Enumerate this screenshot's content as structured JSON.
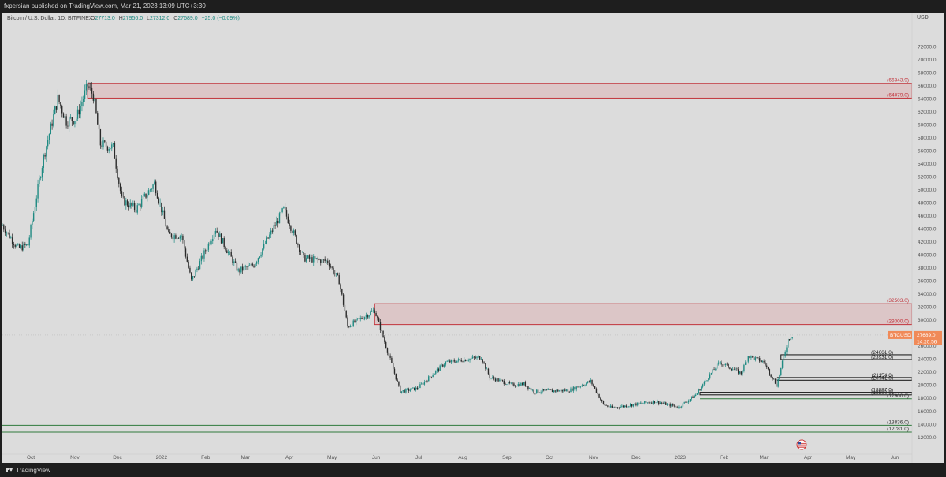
{
  "header": {
    "published_line": "fxpersian published on TradingView.com, Mar 21, 2023 13:09 UTC+3:30"
  },
  "footer": {
    "brand": "TradingView",
    "logo_icon": "tradingview-logo-icon"
  },
  "chart_data": {
    "type": "candlestick",
    "symbol_line": "Bitcoin / U.S. Dollar, 1D, BITFINEX",
    "ohlc": {
      "o_label": "O",
      "o": "27713.0",
      "h_label": "H",
      "h": "27956.0",
      "l_label": "L",
      "l": "27312.0",
      "c_label": "C",
      "c": "27689.0",
      "change": "−25.0 (−0.09%)"
    },
    "currency": "USD",
    "ylim": [
      10000,
      76000
    ],
    "y_ticks": [
      "12000.0",
      "14000.0",
      "16000.0",
      "18000.0",
      "20000.0",
      "22000.0",
      "24000.0",
      "26000.0",
      "28000.0",
      "30000.0",
      "32000.0",
      "34000.0",
      "36000.0",
      "38000.0",
      "40000.0",
      "42000.0",
      "44000.0",
      "46000.0",
      "48000.0",
      "50000.0",
      "52000.0",
      "54000.0",
      "56000.0",
      "58000.0",
      "60000.0",
      "62000.0",
      "64000.0",
      "66000.0",
      "68000.0",
      "70000.0",
      "72000.0"
    ],
    "x_ticks": [
      "Oct",
      "Nov",
      "Dec",
      "2022",
      "Feb",
      "Mar",
      "Apr",
      "May",
      "Jun",
      "Jul",
      "Aug",
      "Sep",
      "Oct",
      "Nov",
      "Dec",
      "2023",
      "Feb",
      "Mar",
      "Apr",
      "May",
      "Jun"
    ],
    "x_range": [
      "2021-09-11",
      "2023-06-11"
    ],
    "close_path": [
      [
        "2021-09-11",
        44500
      ],
      [
        "2021-09-22",
        41000
      ],
      [
        "2021-09-29",
        41500
      ],
      [
        "2021-10-05",
        49000
      ],
      [
        "2021-10-10",
        55000
      ],
      [
        "2021-10-20",
        64000
      ],
      [
        "2021-10-26",
        60500
      ],
      [
        "2021-11-02",
        61000
      ],
      [
        "2021-11-10",
        66000
      ],
      [
        "2021-11-14",
        64500
      ],
      [
        "2021-11-19",
        57000
      ],
      [
        "2021-11-28",
        56500
      ],
      [
        "2021-12-04",
        48500
      ],
      [
        "2021-12-14",
        47000
      ],
      [
        "2021-12-27",
        51000
      ],
      [
        "2022-01-06",
        43000
      ],
      [
        "2022-01-15",
        43000
      ],
      [
        "2022-01-22",
        36000
      ],
      [
        "2022-02-08",
        44000
      ],
      [
        "2022-02-24",
        37500
      ],
      [
        "2022-03-07",
        38500
      ],
      [
        "2022-03-28",
        47000
      ],
      [
        "2022-04-11",
        39500
      ],
      [
        "2022-04-28",
        39000
      ],
      [
        "2022-05-06",
        36000
      ],
      [
        "2022-05-12",
        29000
      ],
      [
        "2022-05-31",
        31500
      ],
      [
        "2022-06-13",
        22500
      ],
      [
        "2022-06-18",
        19000
      ],
      [
        "2022-06-30",
        19500
      ],
      [
        "2022-07-20",
        23500
      ],
      [
        "2022-08-14",
        24300
      ],
      [
        "2022-08-20",
        21200
      ],
      [
        "2022-09-05",
        20000
      ],
      [
        "2022-09-13",
        20200
      ],
      [
        "2022-09-20",
        19000
      ],
      [
        "2022-10-15",
        19200
      ],
      [
        "2022-10-30",
        20600
      ],
      [
        "2022-11-08",
        17000
      ],
      [
        "2022-11-14",
        16500
      ],
      [
        "2022-12-14",
        17500
      ],
      [
        "2022-12-31",
        16600
      ],
      [
        "2023-01-12",
        18500
      ],
      [
        "2023-01-20",
        21000
      ],
      [
        "2023-01-29",
        23500
      ],
      [
        "2023-02-13",
        21800
      ],
      [
        "2023-02-18",
        24500
      ],
      [
        "2023-03-01",
        23500
      ],
      [
        "2023-03-10",
        20000
      ],
      [
        "2023-03-13",
        22500
      ],
      [
        "2023-03-18",
        27000
      ],
      [
        "2023-03-21",
        27689
      ]
    ],
    "resistance_zones": [
      {
        "upper": 66343.9,
        "lower": 64079.0,
        "upper_label": "(66343.9)",
        "lower_label": "(64079.0)",
        "start": "2021-11-10",
        "color": "#c2333b"
      },
      {
        "upper": 32503.0,
        "lower": 29300.0,
        "upper_label": "(32503.0)",
        "lower_label": "(29300.0)",
        "start": "2022-05-31",
        "color": "#c2333b"
      }
    ],
    "black_levels": [
      {
        "a": 24661.0,
        "b": 23931.0,
        "a_label": "(24661.0)",
        "b_label": "(23931.0)",
        "start": "2023-03-13"
      },
      {
        "a": 21154.0,
        "b": 20741.0,
        "a_label": "(21154.0)",
        "b_label": "(20741.0)",
        "start": "2023-03-10"
      },
      {
        "a": 18887.0,
        "b": 18500.0,
        "a_label": "(18887.0)",
        "b_label": "(18500.0)",
        "start": "2023-01-15"
      }
    ],
    "green_levels": [
      {
        "value": 17900.0,
        "label": "(17900.0)",
        "start": "2023-01-15"
      },
      {
        "value": 13836.0,
        "label": "(13836.0)",
        "start": "2021-09-11"
      },
      {
        "value": 12781.0,
        "label": "(12781.0)",
        "start": "2021-09-11"
      }
    ],
    "last_price": {
      "symbol": "BTCUSD",
      "value": "27689.0",
      "countdown": "14:20:56",
      "bg": "#f08a58"
    },
    "colors": {
      "up": "#1e8a82",
      "down": "#2a2a2a",
      "background": "#dcdcdc",
      "flag_icon": "us-flag-icon"
    }
  }
}
